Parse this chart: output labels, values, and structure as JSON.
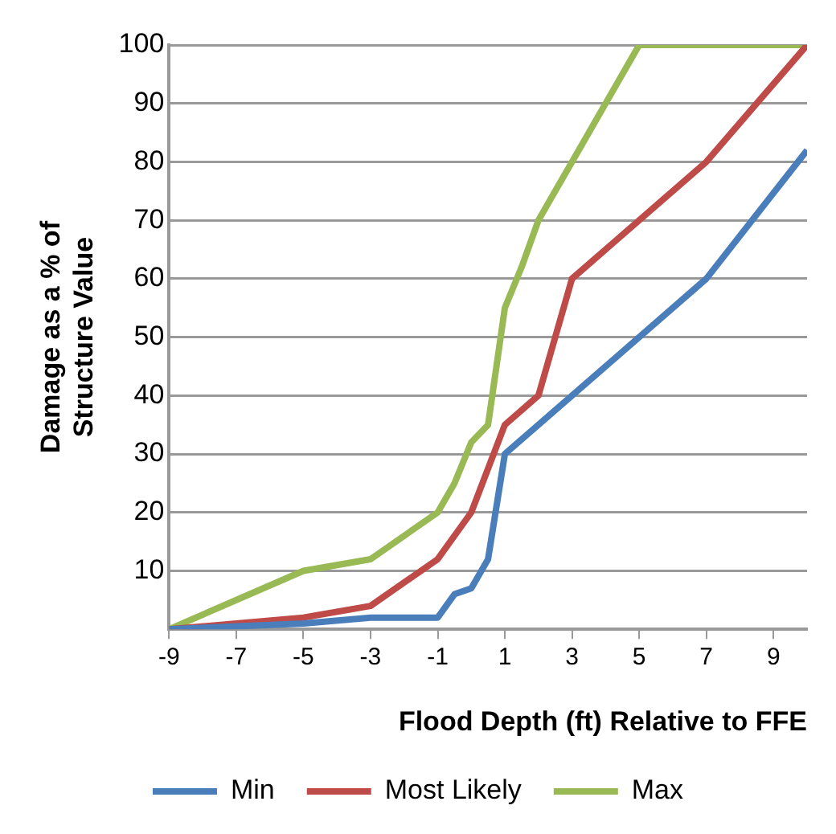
{
  "chart_data": {
    "type": "line",
    "xlabel": "Flood Depth (ft) Relative to FFE",
    "ylabel": "Damage as a % of Structure Value",
    "xlim": [
      -9,
      10
    ],
    "xticks": [
      -9,
      -7,
      -5,
      -3,
      -1,
      1,
      3,
      5,
      7,
      9
    ],
    "ylim": [
      0,
      100
    ],
    "yticks": [
      {
        "value": 0,
        "label": null
      },
      10,
      20,
      30,
      40,
      50,
      60,
      70,
      80,
      90,
      100
    ],
    "grid": "y",
    "legend": "bottom",
    "marker": "none",
    "line_style": "solid",
    "series": [
      {
        "name": "Min",
        "color": "#4a7ebb",
        "x": [
          -9,
          -5,
          -3,
          -1,
          -0.5,
          0,
          0.5,
          1,
          7,
          10
        ],
        "values": [
          0,
          1,
          2,
          2,
          6,
          7,
          12,
          30,
          60,
          82
        ]
      },
      {
        "name": "Most Likely",
        "color": "#be4b48",
        "x": [
          -9,
          -5,
          -3,
          -1,
          0,
          1,
          2,
          3,
          7,
          10
        ],
        "values": [
          0,
          2,
          4,
          12,
          20,
          35,
          40,
          60,
          80,
          100
        ]
      },
      {
        "name": "Max",
        "color": "#98b954",
        "x": [
          -9,
          -5,
          -3,
          -1,
          -0.5,
          0,
          0.5,
          1,
          1.5,
          2,
          3,
          5,
          10
        ],
        "values": [
          0,
          10,
          12,
          20,
          25,
          32,
          35,
          55,
          62,
          70,
          80,
          100,
          100
        ]
      }
    ]
  }
}
